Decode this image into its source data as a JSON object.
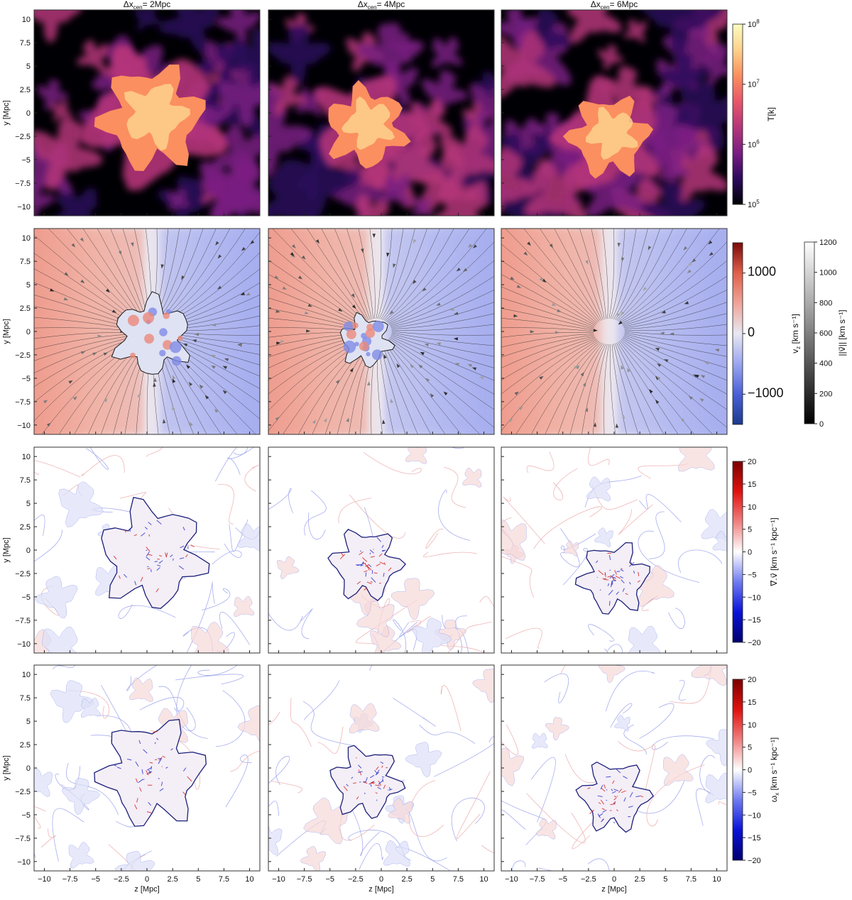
{
  "chart_data": {
    "type": "heatmap",
    "description_grid": "4 rows x 3 columns of simulation slice maps",
    "columns": [
      {
        "label": "Δx",
        "sub": "cen",
        "suffix": "= 2Mpc"
      },
      {
        "label": "Δx",
        "sub": "cen",
        "suffix": "= 4Mpc"
      },
      {
        "label": "Δx",
        "sub": "cen",
        "suffix": "= 6Mpc"
      }
    ],
    "xlabel": "z [Mpc]",
    "ylabel": "y [Mpc]",
    "xlim": [
      -11,
      11
    ],
    "ylim": [
      -11,
      11
    ],
    "x_ticks": [
      -10,
      -7.5,
      -5,
      -2.5,
      0,
      2.5,
      5,
      7.5,
      10
    ],
    "y_ticks": [
      -10,
      -7.5,
      -5,
      -2.5,
      0,
      2.5,
      5,
      7.5,
      10
    ],
    "x_tick_labels": [
      "−10",
      "−7.5",
      "−5",
      "−2.5",
      "0",
      "2.5",
      "5",
      "7.5",
      "10"
    ],
    "y_tick_labels": [
      "−10",
      "−7.5",
      "−5",
      "−2.5",
      "0",
      "2.5",
      "5",
      "7.5",
      "10"
    ],
    "rows": [
      {
        "quantity": "temperature",
        "colorbar": {
          "label": "T[k]",
          "scale": "log",
          "range": [
            100000,
            100000000
          ],
          "ticks": [
            {
              "base": "10",
              "exp": "5",
              "v": 5
            },
            {
              "base": "10",
              "exp": "6",
              "v": 6
            },
            {
              "base": "10",
              "exp": "7",
              "v": 7
            },
            {
              "base": "10",
              "exp": "8",
              "v": 8
            }
          ],
          "colors": [
            "#000004",
            "#2c0b5c",
            "#7a1d82",
            "#b5367a",
            "#e8566a",
            "#fb8f5f",
            "#fdd18c",
            "#fcfdbf"
          ]
        },
        "panels": [
          {
            "core_z": 0.5,
            "core_y": -0.5,
            "core_r": 4.5
          },
          {
            "core_z": -1.5,
            "core_y": -1.5,
            "core_r": 3.5
          },
          {
            "core_z": -0.5,
            "core_y": -2.5,
            "core_r": 3.5
          }
        ]
      },
      {
        "quantity": "velocity_z",
        "colorbar": {
          "label": "v",
          "sub": "z",
          "unit": " [km s⁻¹]",
          "range": [
            -1500,
            1500
          ],
          "ticks": [
            {
              "t": "1000",
              "v": 1000
            },
            {
              "t": "0",
              "v": 0
            },
            {
              "t": "−1000",
              "v": -1000
            }
          ],
          "colors": [
            "#1a3a8c",
            "#4a60d8",
            "#9aa6ef",
            "#e8e8f2",
            "#f0a49a",
            "#e0604a",
            "#7a0a0a"
          ]
        },
        "second_colorbar": {
          "label": "||v⃗|| [km s⁻¹]",
          "range": [
            0,
            1200
          ],
          "ticks": [
            {
              "t": "0",
              "v": 0
            },
            {
              "t": "200",
              "v": 200
            },
            {
              "t": "400",
              "v": 400
            },
            {
              "t": "600",
              "v": 600
            },
            {
              "t": "800",
              "v": 800
            },
            {
              "t": "1000",
              "v": 1000
            },
            {
              "t": "1200",
              "v": 1200
            }
          ],
          "colors": [
            "#000000",
            "#ffffff"
          ]
        },
        "panels": [
          {
            "boundary_z": 0.5
          },
          {
            "boundary_z": -0.5
          },
          {
            "boundary_z": -0.5
          }
        ]
      },
      {
        "quantity": "divergence",
        "colorbar": {
          "label": "∇⃗.v⃗ [km s⁻¹ kpc⁻¹]",
          "range": [
            -20,
            20
          ],
          "ticks": [
            {
              "t": "20",
              "v": 20
            },
            {
              "t": "15",
              "v": 15
            },
            {
              "t": "10",
              "v": 10
            },
            {
              "t": "5",
              "v": 5
            },
            {
              "t": "0",
              "v": 0
            },
            {
              "t": "−5",
              "v": -5
            },
            {
              "t": "−10",
              "v": -10
            },
            {
              "t": "−15",
              "v": -15
            },
            {
              "t": "−20",
              "v": -20
            }
          ],
          "colors": [
            "#00006e",
            "#0a12d8",
            "#6f7bf0",
            "#ffffff",
            "#f08080",
            "#e01010",
            "#7a0000"
          ]
        },
        "panels": [
          {
            "core_z": 0.5,
            "core_y": -0.5,
            "core_r": 4.5
          },
          {
            "core_z": -1.5,
            "core_y": -1.5,
            "core_r": 3.0
          },
          {
            "core_z": 0.0,
            "core_y": -3.0,
            "core_r": 3.0
          }
        ]
      },
      {
        "quantity": "vorticity_x",
        "colorbar": {
          "label": "ω",
          "sub": "x",
          "unit": " [km s⁻¹ kpc⁻¹]",
          "range": [
            -20,
            20
          ],
          "ticks": [
            {
              "t": "20",
              "v": 20
            },
            {
              "t": "15",
              "v": 15
            },
            {
              "t": "10",
              "v": 10
            },
            {
              "t": "5",
              "v": 5
            },
            {
              "t": "0",
              "v": 0
            },
            {
              "t": "−5",
              "v": -5
            },
            {
              "t": "−10",
              "v": -10
            },
            {
              "t": "−15",
              "v": -15
            },
            {
              "t": "−20",
              "v": -20
            }
          ],
          "colors": [
            "#00006e",
            "#0a12d8",
            "#6f7bf0",
            "#ffffff",
            "#f08080",
            "#e01010",
            "#7a0000"
          ]
        },
        "panels": [
          {
            "core_z": 0.5,
            "core_y": -0.5,
            "core_r": 4.5
          },
          {
            "core_z": -1.5,
            "core_y": -1.5,
            "core_r": 3.0
          },
          {
            "core_z": 0.0,
            "core_y": -3.0,
            "core_r": 3.0
          }
        ]
      }
    ]
  }
}
